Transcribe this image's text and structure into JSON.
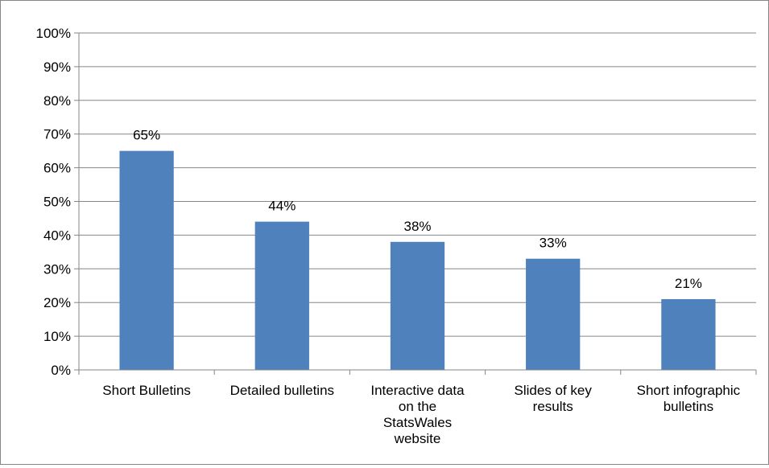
{
  "chart_data": {
    "type": "bar",
    "title": "",
    "xlabel": "",
    "ylabel": "",
    "ylim": [
      0,
      100
    ],
    "y_tick_step": 10,
    "y_tick_format": "percent",
    "grid": true,
    "legend": "none",
    "bar_color": "#4F81BD",
    "categories": [
      "Short Bulletins",
      "Detailed bulletins",
      "Interactive data on the StatsWales website",
      "Slides of key results",
      "Short infographic bulletins"
    ],
    "category_label_lines": [
      [
        "Short Bulletins"
      ],
      [
        "Detailed bulletins"
      ],
      [
        "Interactive data",
        "on the",
        "StatsWales",
        "website"
      ],
      [
        "Slides of key",
        "results"
      ],
      [
        "Short infographic",
        "bulletins"
      ]
    ],
    "values": [
      65,
      44,
      38,
      33,
      21
    ],
    "data_labels": [
      "65%",
      "44%",
      "38%",
      "33%",
      "21%"
    ],
    "y_tick_labels": [
      "0%",
      "10%",
      "20%",
      "30%",
      "40%",
      "50%",
      "60%",
      "70%",
      "80%",
      "90%",
      "100%"
    ]
  }
}
